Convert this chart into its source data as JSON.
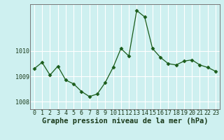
{
  "x": [
    0,
    1,
    2,
    3,
    4,
    5,
    6,
    7,
    8,
    9,
    10,
    11,
    12,
    13,
    14,
    15,
    16,
    17,
    18,
    19,
    20,
    21,
    22,
    23
  ],
  "y": [
    1009.3,
    1009.55,
    1009.05,
    1009.4,
    1008.85,
    1008.7,
    1008.4,
    1008.2,
    1008.3,
    1008.75,
    1009.35,
    1010.1,
    1009.8,
    1011.6,
    1011.35,
    1010.1,
    1009.75,
    1009.5,
    1009.45,
    1009.6,
    1009.65,
    1009.45,
    1009.35,
    1009.2
  ],
  "line_color": "#1a5c1a",
  "marker": "D",
  "marker_size": 2.5,
  "background_color": "#cef0f0",
  "grid_color": "#ffffff",
  "xlabel": "Graphe pression niveau de la mer (hPa)",
  "xlabel_fontsize": 7.5,
  "ylim": [
    1007.7,
    1011.85
  ],
  "yticks": [
    1008,
    1009,
    1010
  ],
  "xticks": [
    0,
    1,
    2,
    3,
    4,
    5,
    6,
    7,
    8,
    9,
    10,
    11,
    12,
    13,
    14,
    15,
    16,
    17,
    18,
    19,
    20,
    21,
    22,
    23
  ],
  "tick_fontsize": 6.0,
  "spine_color": "#777777"
}
